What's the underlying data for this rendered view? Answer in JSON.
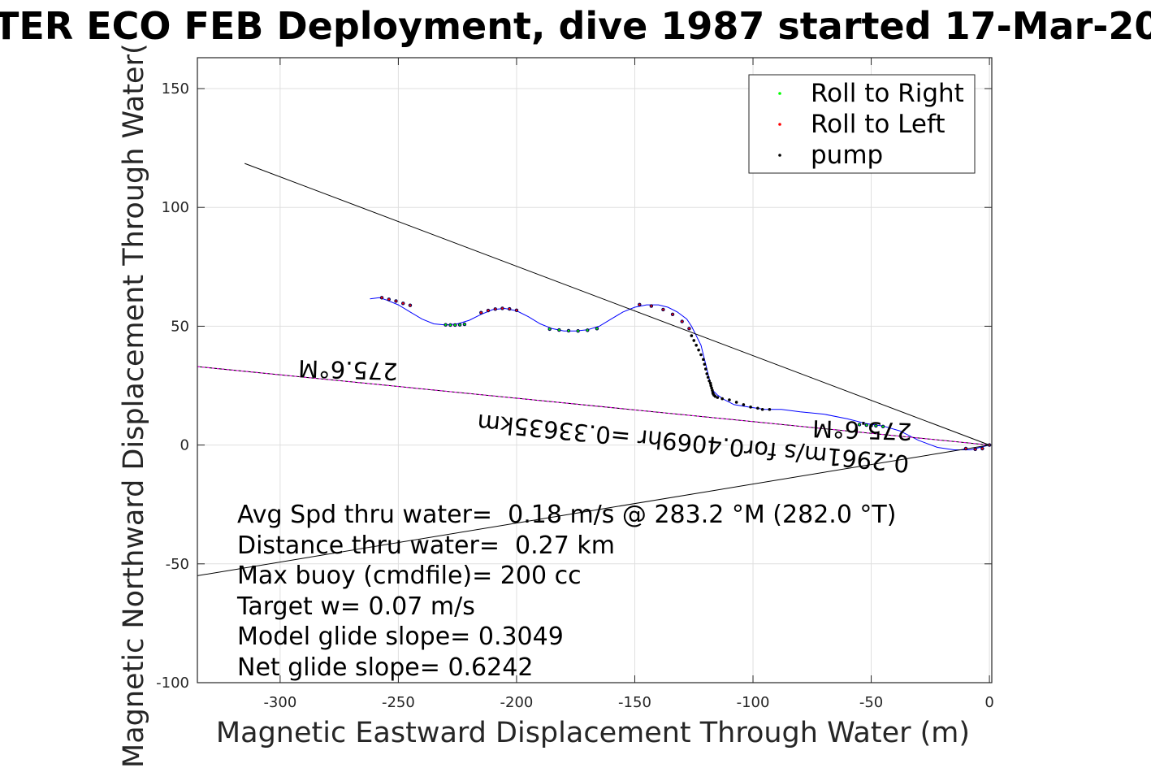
{
  "chart_data": {
    "type": "line",
    "title": "TER ECO FEB Deployment, dive 1987 started 17-Mar-20",
    "xlabel": "Magnetic Eastward Displacement Through Water (m)",
    "ylabel": "Magnetic Northward Displacement Through Water(",
    "xlim": [
      -335,
      1
    ],
    "ylim": [
      -100,
      163
    ],
    "x_ticks": [
      -300,
      -250,
      -200,
      -150,
      -100,
      -50,
      0
    ],
    "x_tick_labels": [
      "-300",
      "-250",
      "-200",
      "-150",
      "-100",
      "-50",
      "0"
    ],
    "y_ticks": [
      -100,
      -50,
      0,
      50,
      100,
      150
    ],
    "y_tick_labels": [
      "-100",
      "-50",
      "0",
      "50",
      "100",
      "150"
    ],
    "grid": true,
    "legend_position": "top-right",
    "legend": [
      {
        "label": "Roll to Right",
        "color": "#00ff00"
      },
      {
        "label": "Roll to Left",
        "color": "#ff0000"
      },
      {
        "label": "pump",
        "color": "#000000"
      }
    ],
    "series": [
      {
        "kind": "track",
        "color": "#0000ff",
        "x": [
          0,
          -8,
          -15,
          -22,
          -30,
          -38,
          -45,
          -52,
          -60,
          -70,
          -80,
          -88,
          -95,
          -102,
          -108,
          -112,
          -115,
          -117,
          -118,
          -119,
          -120,
          -121,
          -122,
          -124,
          -126,
          -128,
          -132,
          -136,
          -140,
          -145,
          -150,
          -155,
          -160,
          -165,
          -170,
          -175,
          -180,
          -185,
          -190,
          -195,
          -200,
          -205,
          -210,
          -215,
          -220,
          -225,
          -230,
          -235,
          -240,
          -245,
          -250,
          -255,
          -258,
          -262
        ],
        "y": [
          0,
          -2,
          -2,
          -1,
          2,
          6,
          8,
          9,
          11,
          13,
          14,
          15,
          15,
          16,
          17,
          19,
          21,
          23,
          26,
          30,
          34,
          38,
          42,
          46,
          50,
          53,
          56,
          58,
          59,
          59,
          58,
          56,
          53,
          50,
          48.5,
          48,
          48,
          49,
          51,
          54,
          56.5,
          57.5,
          57,
          55,
          52.5,
          51,
          50.5,
          51,
          53,
          56,
          59,
          61,
          62,
          61.5
        ]
      },
      {
        "kind": "roll_right",
        "color": "#00ff00",
        "x": [
          -230,
          -228,
          -226,
          -224,
          -222,
          -186,
          -182,
          -178,
          -174,
          -170,
          -166,
          -55,
          -52,
          -50,
          -48,
          -45
        ],
        "y": [
          50.6,
          50.5,
          50.5,
          50.6,
          50.8,
          48.8,
          48.4,
          48.1,
          48.0,
          48.3,
          49.0,
          8.6,
          8.4,
          8.2,
          8.1,
          7.8
        ]
      },
      {
        "kind": "roll_left",
        "color": "#ff0000",
        "x": [
          -257,
          -254,
          -251,
          -248,
          -245,
          -215,
          -212,
          -209,
          -206,
          -203,
          -200,
          -148,
          -143,
          -138,
          -134,
          -130,
          -127,
          -10,
          -6,
          -3,
          0
        ],
        "y": [
          62.0,
          61.3,
          60.6,
          59.6,
          58.8,
          55.7,
          56.6,
          57.2,
          57.5,
          57.3,
          56.7,
          59.1,
          58.5,
          57.0,
          55.0,
          52.0,
          49.0,
          -1.5,
          -1.8,
          -1.5,
          0
        ]
      },
      {
        "kind": "pump",
        "color": "#000000",
        "x": [
          -126,
          -125,
          -124,
          -123,
          -122,
          -121,
          -120.5,
          -120,
          -119.5,
          -119,
          -118.5,
          -118,
          -117.8,
          -117.5,
          -117.2,
          -117,
          -116.8,
          -116.5,
          -116,
          -115,
          -113,
          -110,
          -107,
          -104,
          -101,
          -98,
          -96,
          -93
        ],
        "y": [
          46,
          44,
          42,
          40,
          38,
          36,
          34,
          32,
          30,
          28.5,
          27,
          26,
          25,
          24,
          23,
          22,
          21.5,
          21,
          20.5,
          20,
          19.5,
          19,
          18,
          17,
          16,
          15.5,
          15,
          15
        ]
      },
      {
        "kind": "upper_bound",
        "color": "#000000",
        "x": [
          -315,
          0
        ],
        "y": [
          118.5,
          0
        ]
      },
      {
        "kind": "lower_bound",
        "color": "#000000",
        "x": [
          -335,
          0
        ],
        "y": [
          -55,
          0
        ]
      },
      {
        "kind": "heading",
        "color": "#ff00ff",
        "x": [
          -335,
          0
        ],
        "y": [
          33,
          0
        ]
      }
    ],
    "annotations": {
      "heading_label_1": "275.6°M",
      "heading_label_2": "275.6°M",
      "speed_label": "0.2961m/s for0.4069hr =0.33635km"
    },
    "stats": [
      "Avg Spd thru water=  0.18 m/s @ 283.2 °M (282.0 °T)",
      "Distance thru water=  0.27 km",
      "Max buoy (cmdfile)= 200 cc",
      "Target w= 0.07 m/s",
      "Model glide slope= 0.3049",
      "Net glide slope= 0.6242"
    ]
  }
}
